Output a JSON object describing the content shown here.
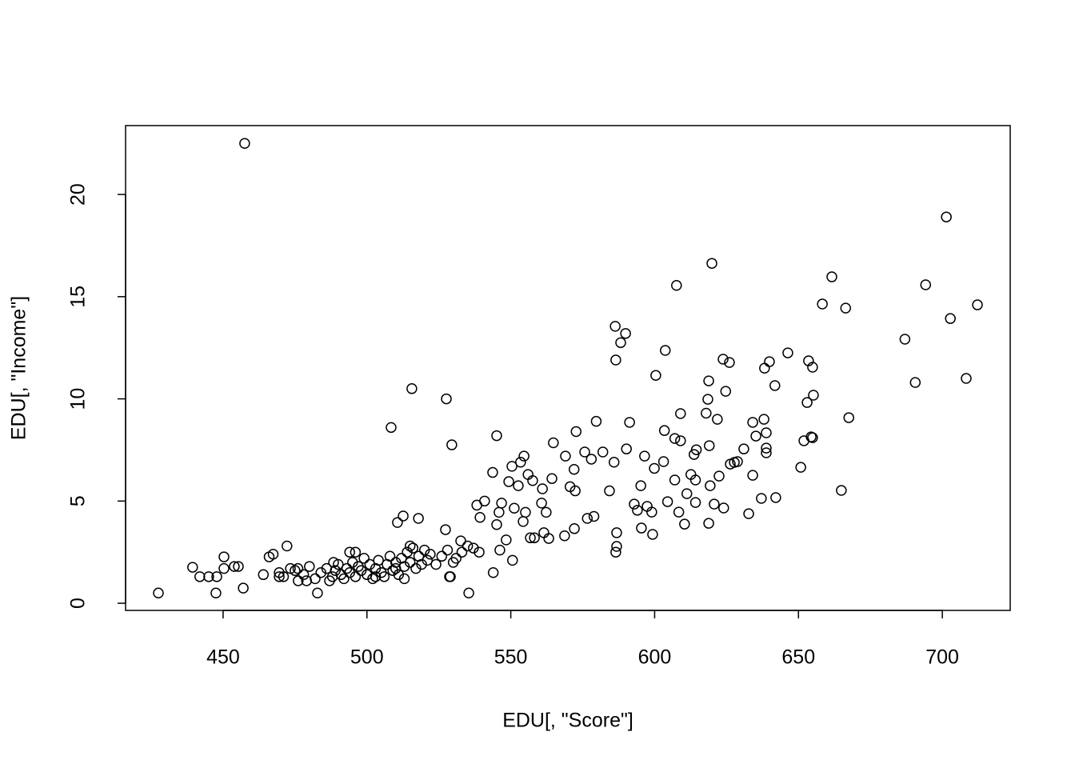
{
  "chart_data": {
    "type": "scatter",
    "x_label": "EDU[, \"Score\"]",
    "y_label": "EDU[, \"Income\"]",
    "xlim": [
      416.1,
      723.6
    ],
    "ylim": [
      -0.35,
      23.37
    ],
    "xticks": [
      450,
      500,
      550,
      600,
      650,
      700
    ],
    "yticks": [
      0,
      5,
      10,
      15,
      20
    ],
    "color": "#000000",
    "x": [
      427.5,
      439.4,
      441.9,
      445,
      447.8,
      447.5,
      450.3,
      450.3,
      453.9,
      455.3,
      457.5,
      457,
      464,
      466,
      467.4,
      469.5,
      469.5,
      472.2,
      473.4,
      476.1,
      482.8,
      488.4,
      494,
      508.4,
      510.6,
      512.6,
      515.6,
      517.9,
      527.3,
      527.6,
      529.5,
      528.7,
      532.6,
      535.4,
      538.2,
      539.3,
      540.9,
      543.7,
      543.9,
      545.1,
      545.1,
      545.9,
      546.8,
      546.2,
      548.4,
      549.3,
      550.4,
      550.6,
      551.2,
      552.6,
      553.4,
      554.6,
      554.3,
      555.1,
      556,
      556.8,
      557.6,
      558.2,
      560.7,
      561,
      561.5,
      562.3,
      563.2,
      564.3,
      564.8,
      569,
      568.7,
      570.6,
      572,
      572.1,
      572.4,
      572.7,
      575.7,
      576.6,
      578,
      578.9,
      579.7,
      582,
      584.3,
      585.9,
      586.3,
      586.5,
      586.8,
      586.5,
      586.8,
      588.2,
      589.9,
      590.2,
      591.3,
      592.9,
      594,
      595.2,
      595.4,
      596.5,
      597.4,
      599,
      599.3,
      599.9,
      600.4,
      603.1,
      603.4,
      603.7,
      604.5,
      607,
      607.6,
      607,
      608.4,
      609,
      609,
      610.4,
      611.2,
      612.6,
      613.7,
      614.2,
      614.2,
      614.5,
      617.9,
      618.5,
      618.8,
      619,
      618.8,
      619.3,
      619.9,
      620.7,
      621.8,
      622.4,
      623.8,
      624,
      624.7,
      626,
      626.3,
      627.7,
      628.8,
      631,
      632.7,
      634.1,
      634.1,
      635.2,
      637.1,
      638,
      638.2,
      638.8,
      638.8,
      638.8,
      639.9,
      641.8,
      642.1,
      646.3,
      650.8,
      651.9,
      653,
      653.5,
      654.4,
      654.9,
      654.9,
      655.2,
      658.3,
      661.6,
      664.9,
      666.4,
      667.5,
      687,
      690.6,
      701.4,
      694.2,
      702.8,
      708.3,
      712.2,
      475,
      478,
      480,
      482,
      484,
      486,
      488,
      489,
      490,
      491,
      492,
      493,
      494,
      495,
      496,
      497,
      498,
      499,
      500,
      501,
      502,
      503,
      504,
      505,
      506,
      507,
      508,
      509,
      510,
      511,
      512,
      513,
      514,
      515,
      516,
      517,
      518,
      519,
      520,
      521,
      522,
      524,
      526,
      528,
      529,
      530,
      531,
      533,
      535,
      537,
      539,
      515,
      513,
      487,
      479,
      471,
      476,
      496,
      503,
      510
    ],
    "values": [
      0.5,
      1.76,
      1.3,
      1.3,
      1.3,
      0.5,
      2.27,
      1.7,
      1.8,
      1.8,
      22.5,
      0.74,
      1.4,
      2.27,
      2.4,
      1.5,
      1.3,
      2.8,
      1.7,
      1.1,
      0.5,
      2.0,
      2.5,
      8.6,
      3.95,
      4.27,
      10.5,
      4.15,
      3.6,
      10.0,
      7.75,
      1.3,
      3.05,
      0.5,
      4.8,
      4.2,
      5.0,
      6.4,
      1.5,
      8.2,
      3.85,
      4.45,
      4.9,
      2.6,
      3.1,
      5.95,
      6.7,
      2.1,
      4.65,
      5.75,
      6.9,
      7.2,
      4.0,
      4.45,
      6.3,
      3.2,
      6.0,
      3.2,
      4.9,
      5.6,
      3.45,
      4.45,
      3.17,
      6.1,
      7.85,
      7.2,
      3.3,
      5.7,
      6.55,
      3.65,
      5.5,
      8.4,
      7.4,
      4.15,
      7.05,
      4.25,
      8.9,
      7.4,
      5.5,
      6.9,
      13.55,
      11.9,
      3.45,
      2.5,
      2.78,
      12.75,
      13.2,
      7.55,
      8.85,
      4.85,
      4.55,
      5.75,
      3.68,
      7.2,
      4.74,
      4.46,
      3.37,
      6.6,
      11.15,
      6.93,
      8.45,
      12.37,
      4.97,
      8.06,
      15.55,
      6.03,
      4.46,
      7.95,
      9.28,
      3.87,
      5.36,
      6.3,
      7.28,
      4.93,
      6.03,
      7.51,
      9.3,
      9.98,
      10.88,
      7.71,
      3.91,
      5.75,
      16.63,
      4.85,
      9.0,
      6.22,
      11.94,
      4.66,
      10.37,
      11.78,
      6.81,
      6.89,
      6.93,
      7.55,
      4.38,
      8.85,
      6.26,
      8.18,
      5.13,
      9.0,
      11.5,
      8.34,
      7.36,
      7.59,
      11.82,
      10.65,
      5.17,
      12.25,
      6.65,
      7.95,
      9.82,
      11.86,
      8.14,
      8.1,
      11.55,
      10.18,
      14.64,
      15.97,
      5.52,
      14.44,
      9.08,
      12.92,
      10.8,
      18.9,
      15.58,
      13.93,
      11.0,
      14.6,
      1.6,
      1.4,
      1.8,
      1.2,
      1.5,
      1.7,
      1.3,
      1.6,
      1.9,
      1.4,
      1.2,
      1.7,
      1.5,
      2.0,
      1.3,
      1.8,
      1.6,
      2.2,
      1.4,
      1.9,
      1.2,
      1.7,
      2.1,
      1.5,
      1.3,
      1.9,
      2.3,
      1.6,
      2.0,
      1.4,
      2.2,
      1.8,
      2.5,
      2.0,
      2.7,
      1.7,
      2.3,
      1.9,
      2.6,
      2.1,
      2.4,
      1.9,
      2.3,
      2.6,
      1.3,
      2.0,
      2.2,
      2.5,
      2.8,
      2.7,
      2.5,
      2.8,
      1.2,
      1.1,
      1.1,
      1.3,
      1.7,
      2.5,
      1.3,
      1.7
    ]
  }
}
